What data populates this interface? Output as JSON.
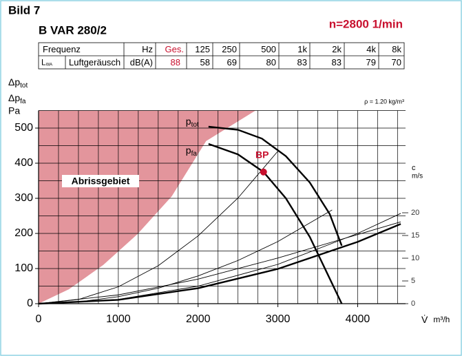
{
  "header": {
    "title": "Bild 7",
    "subtitle": "B VAR 280/2",
    "speed": "n=2800 1/min"
  },
  "table": {
    "header": {
      "label": "Frequenz",
      "unit": "Hz",
      "total": "Ges.",
      "bands": [
        "125",
        "250",
        "500",
        "1k",
        "2k",
        "4k",
        "8k"
      ]
    },
    "row": {
      "symbol": "L",
      "symbol_sub": "WA",
      "label": "Luftgeräusch",
      "unit": "dB(A)",
      "total": 88,
      "values": [
        58,
        69,
        80,
        83,
        83,
        79,
        70
      ]
    }
  },
  "chart_data": {
    "type": "line",
    "ylabel": [
      {
        "main": "Δp",
        "sub": "tot"
      },
      {
        "main": "Δp",
        "sub": "fa"
      },
      {
        "main": "Pa"
      }
    ],
    "xlabel": {
      "symbol": "V̇",
      "unit": "m³/h"
    },
    "y2label": {
      "symbol": "c",
      "unit": "m/s"
    },
    "note": "ρ = 1.20 kg/m³",
    "xlim": [
      0,
      4600
    ],
    "ylim": [
      0,
      550
    ],
    "y2lim": [
      0,
      42.5
    ],
    "xticks": [
      0,
      1000,
      2000,
      3000,
      4000
    ],
    "yticks": [
      0,
      100,
      200,
      300,
      400,
      500
    ],
    "y2ticks": [
      0,
      5,
      10,
      15,
      20
    ],
    "xgrid": [
      250,
      500,
      750,
      1000,
      1250,
      1500,
      1750,
      2000,
      2250,
      2500,
      2750,
      3000,
      3250,
      3500,
      3750,
      4000,
      4250,
      4500
    ],
    "ygrid": [
      50,
      100,
      150,
      200,
      250,
      300,
      350,
      400,
      450,
      500,
      550
    ],
    "grid": true,
    "region": {
      "name": "Abrissgebiet",
      "color": "#e3959c",
      "x": [
        0,
        380,
        810,
        1240,
        1670,
        2100,
        2720
      ],
      "values": [
        0,
        41,
        110,
        198,
        306,
        463,
        550
      ]
    },
    "series": [
      {
        "name": "p",
        "name_sub": "tot",
        "color": "#000000",
        "weight": "bold",
        "x": [
          2130,
          2500,
          2800,
          3100,
          3400,
          3650,
          3800
        ],
        "values": [
          504,
          495,
          470,
          420,
          345,
          255,
          165
        ]
      },
      {
        "name": "p",
        "name_sub": "fa",
        "color": "#000000",
        "weight": "bold",
        "x": [
          2130,
          2500,
          2820,
          3100,
          3400,
          3600,
          3800
        ],
        "values": [
          455,
          425,
          375,
          300,
          190,
          95,
          0
        ]
      },
      {
        "color": "#000000",
        "weight": "thin",
        "x": [
          0,
          500,
          1000,
          1500,
          2000,
          2500,
          3010
        ],
        "values": [
          0,
          12,
          48,
          108,
          193,
          301,
          437
        ]
      },
      {
        "color": "#000000",
        "weight": "thin",
        "x": [
          0,
          500,
          1000,
          1500,
          2000,
          2500,
          3000,
          3680
        ],
        "values": [
          0,
          5,
          20,
          44,
          79,
          123,
          177,
          267
        ]
      },
      {
        "color": "#000000",
        "weight": "thin",
        "x": [
          0,
          1000,
          2000,
          3000,
          4000,
          4540
        ],
        "values": [
          0,
          12,
          50,
          112,
          200,
          257
        ]
      },
      {
        "color": "#000000",
        "weight": "thin",
        "x": [
          0,
          1000,
          2000,
          3000,
          4540
        ],
        "values": [
          0,
          25,
          70,
          130,
          233
        ]
      },
      {
        "color": "#000000",
        "weight": "bold",
        "x": [
          0,
          1000,
          2000,
          3000,
          4000,
          4540
        ],
        "values": [
          0,
          11,
          44,
          99,
          176,
          227
        ]
      }
    ],
    "points": [
      {
        "label": "BP",
        "x": 2820,
        "y": 375,
        "color": "#c8102e"
      }
    ]
  }
}
